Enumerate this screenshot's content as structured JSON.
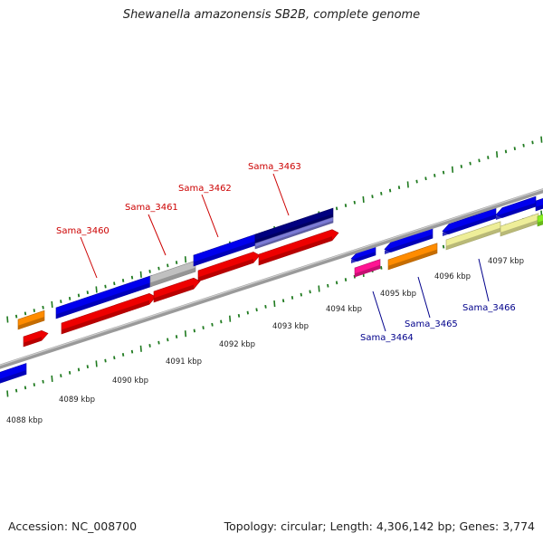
{
  "title": "Shewanella amazonensis SB2B, complete genome",
  "footer": {
    "accession": "Accession: NC_008700",
    "summary": "Topology: circular; Length: 4,306,142 bp; Genes: 3,774"
  },
  "colors": {
    "backbone": "#8a8a8a",
    "tick": "#1f7a1f",
    "label_top": "#cc0000",
    "label_bottom": "#00008b",
    "blue": "#0000ee",
    "red": "#ee0000",
    "orange": "#ff8c00",
    "gray": "#c0c0c0",
    "navy": "#000080",
    "lavender": "#7b7bd6",
    "magenta": "#ff1493",
    "khaki": "#eeee99",
    "green": "#88ee22"
  },
  "scale": {
    "unit": "kbp",
    "positions": [
      4088,
      4089,
      4090,
      4091,
      4092,
      4093,
      4094,
      4095,
      4096,
      4097
    ],
    "labels": [
      "4088 kbp",
      "4089 kbp",
      "4090 kbp",
      "4091 kbp",
      "4092 kbp",
      "4093 kbp",
      "4094 kbp",
      "4095 kbp",
      "4096 kbp",
      "4097 kbp"
    ]
  },
  "gene_labels": [
    {
      "id": "Sama_3460",
      "text": "Sama_3460",
      "side": "top"
    },
    {
      "id": "Sama_3461",
      "text": "Sama_3461",
      "side": "top"
    },
    {
      "id": "Sama_3462",
      "text": "Sama_3462",
      "side": "top"
    },
    {
      "id": "Sama_3463",
      "text": "Sama_3463",
      "side": "top"
    },
    {
      "id": "Sama_3464",
      "text": "Sama_3464",
      "side": "bottom"
    },
    {
      "id": "Sama_3465",
      "text": "Sama_3465",
      "side": "bottom"
    },
    {
      "id": "Sama_3466",
      "text": "Sama_3466",
      "side": "bottom"
    }
  ]
}
